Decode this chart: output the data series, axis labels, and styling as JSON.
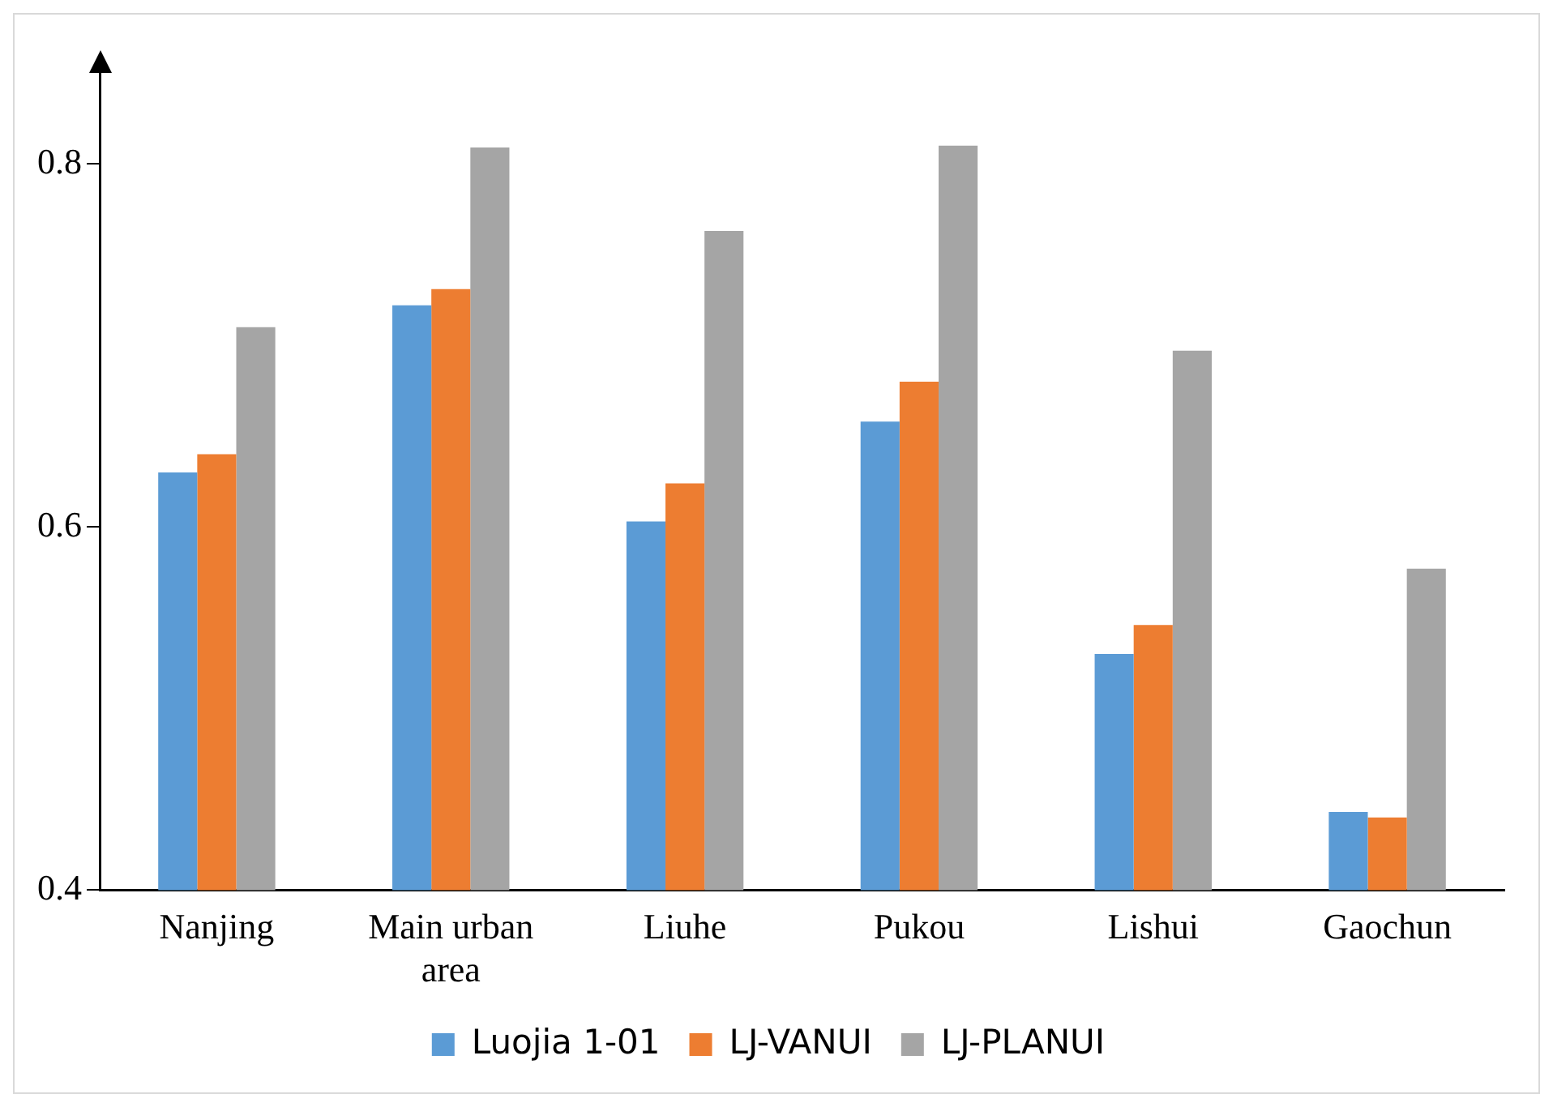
{
  "chart_data": {
    "type": "bar",
    "categories": [
      "Nanjing",
      "Main urban area",
      "Liuhe",
      "Pukou",
      "Lishui",
      "Gaochun"
    ],
    "series": [
      {
        "name": "Luojia 1-01",
        "color": "#5b9bd5",
        "values": [
          0.63,
          0.722,
          0.603,
          0.658,
          0.53,
          0.443
        ]
      },
      {
        "name": "LJ-VANUI",
        "color": "#ed7d31",
        "values": [
          0.64,
          0.731,
          0.624,
          0.68,
          0.546,
          0.44
        ]
      },
      {
        "name": "LJ-PLANUI",
        "color": "#a5a5a5",
        "values": [
          0.71,
          0.809,
          0.763,
          0.81,
          0.697,
          0.577
        ]
      }
    ],
    "ylim": [
      0.4,
      0.85
    ],
    "yticks": [
      0.4,
      0.6,
      0.8
    ],
    "grid": false,
    "legend": "bottom"
  }
}
